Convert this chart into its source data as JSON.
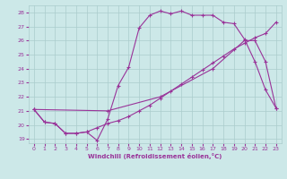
{
  "xlabel": "Windchill (Refroidissement éolien,°C)",
  "bg_color": "#cce8e8",
  "line_color": "#993399",
  "grid_color": "#aacccc",
  "xlim": [
    -0.5,
    23.5
  ],
  "ylim": [
    18.7,
    28.5
  ],
  "yticks": [
    19,
    20,
    21,
    22,
    23,
    24,
    25,
    26,
    27,
    28
  ],
  "xticks": [
    0,
    1,
    2,
    3,
    4,
    5,
    6,
    7,
    8,
    9,
    10,
    11,
    12,
    13,
    14,
    15,
    16,
    17,
    18,
    19,
    20,
    21,
    22,
    23
  ],
  "line1_x": [
    0,
    1,
    2,
    3,
    4,
    5,
    6,
    7,
    8,
    9,
    10,
    11,
    12,
    13,
    14,
    15,
    16,
    17,
    18,
    19,
    20,
    21,
    22,
    23
  ],
  "line1_y": [
    21.1,
    20.2,
    20.1,
    19.4,
    19.4,
    19.5,
    18.9,
    20.4,
    22.8,
    24.1,
    26.9,
    27.8,
    28.1,
    27.9,
    28.1,
    27.8,
    27.8,
    27.8,
    27.3,
    27.2,
    26.1,
    24.5,
    22.5,
    21.2
  ],
  "line2_x": [
    0,
    1,
    2,
    3,
    4,
    5,
    6,
    7,
    8,
    9,
    10,
    11,
    12,
    13,
    14,
    15,
    16,
    17,
    18,
    19,
    20,
    21,
    22,
    23
  ],
  "line2_y": [
    21.1,
    20.2,
    20.1,
    19.4,
    19.4,
    19.5,
    19.8,
    20.1,
    20.3,
    20.6,
    21.0,
    21.4,
    21.9,
    22.4,
    22.9,
    23.4,
    23.9,
    24.4,
    24.9,
    25.4,
    25.8,
    26.2,
    26.5,
    27.3
  ],
  "line3_x": [
    0,
    7,
    12,
    17,
    20,
    21,
    22,
    23
  ],
  "line3_y": [
    21.1,
    21.0,
    22.0,
    24.0,
    26.0,
    26.0,
    24.5,
    21.2
  ]
}
